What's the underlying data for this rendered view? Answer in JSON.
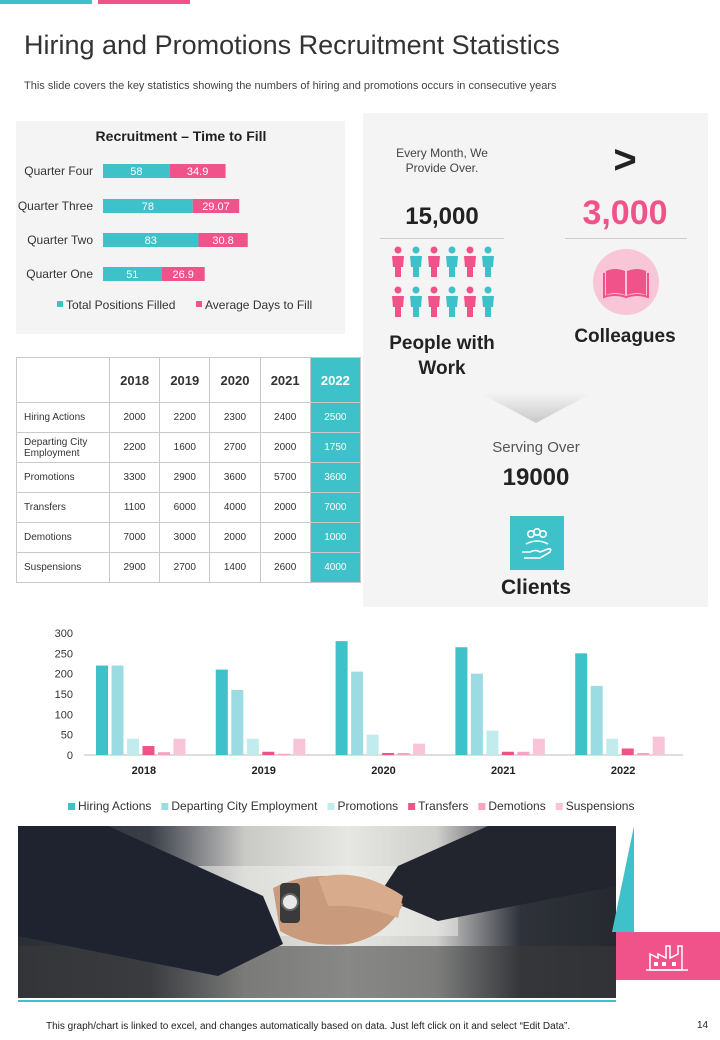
{
  "header": {
    "title": "Hiring and Promotions Recruitment Statistics",
    "subtitle": "This slide covers the key statistics showing the numbers of hiring and promotions occurs in consecutive years"
  },
  "colors": {
    "teal": "#3ec1c9",
    "pink": "#f0528a",
    "light_teal": "#9bdce2",
    "pale_teal": "#c2ebee",
    "light_pink": "#f6a3c4",
    "pale_pink": "#f9c3d8"
  },
  "chart_data": [
    {
      "type": "bar",
      "orientation": "horizontal",
      "stacked": true,
      "title": "Recruitment – Time to Fill",
      "categories": [
        "Quarter Four",
        "Quarter Three",
        "Quarter Two",
        "Quarter One"
      ],
      "series": [
        {
          "name": "Total Positions Filled",
          "values": [
            58,
            78,
            83,
            51
          ]
        },
        {
          "name": "Average Days to Fill",
          "values": [
            34.9,
            29.07,
            30.8,
            26.9
          ]
        }
      ],
      "legend": "bottom"
    },
    {
      "type": "bar",
      "categories": [
        "2018",
        "2019",
        "2020",
        "2021",
        "2022"
      ],
      "ylim": [
        0,
        300
      ],
      "yticks": [
        "300",
        "250",
        "200",
        "150",
        "100",
        "50",
        "0"
      ],
      "legend": "bottom",
      "series": [
        {
          "name": "Hiring Actions",
          "values": [
            220,
            210,
            280,
            265,
            250
          ]
        },
        {
          "name": "Departing City Employment",
          "values": [
            220,
            160,
            205,
            200,
            170
          ]
        },
        {
          "name": "Promotions",
          "values": [
            40,
            40,
            50,
            60,
            40
          ]
        },
        {
          "name": "Transfers",
          "values": [
            22,
            8,
            5,
            8,
            16
          ]
        },
        {
          "name": "Demotions",
          "values": [
            7,
            3,
            5,
            8,
            5
          ]
        },
        {
          "name": "Suspensions",
          "values": [
            40,
            40,
            28,
            40,
            45
          ]
        }
      ]
    }
  ],
  "table": {
    "years": [
      "2018",
      "2019",
      "2020",
      "2021",
      "2022"
    ],
    "rows": [
      {
        "label": "Hiring Actions",
        "values": [
          "2000",
          "2200",
          "2300",
          "2400",
          "2500"
        ]
      },
      {
        "label": "Departing City Employment",
        "values": [
          "2200",
          "1600",
          "2700",
          "2000",
          "1750"
        ]
      },
      {
        "label": "Promotions",
        "values": [
          "3300",
          "2900",
          "3600",
          "5700",
          "3600"
        ]
      },
      {
        "label": "Transfers",
        "values": [
          "1100",
          "6000",
          "4000",
          "2000",
          "7000"
        ]
      },
      {
        "label": "Demotions",
        "values": [
          "7000",
          "3000",
          "2000",
          "2000",
          "1000"
        ]
      },
      {
        "label": "Suspensions",
        "values": [
          "2900",
          "2700",
          "1400",
          "2600",
          "4000"
        ]
      }
    ]
  },
  "stats": {
    "provide_text": "Every Month, We Provide Over.",
    "people_count": "15,000",
    "people_label": "People with Work",
    "gt": ">",
    "colleagues_count": "3,000",
    "colleagues_label": "Colleagues",
    "serving_text": "Serving Over",
    "clients_count": "19000",
    "clients_label": "Clients"
  },
  "icons": {
    "people": "person-icon",
    "book": "open-book-icon",
    "clients": "hand-holding-people-icon",
    "factory": "factory-icon"
  },
  "image": {
    "description_name": "handshake-photo"
  },
  "footer": {
    "note": "This graph/chart is linked to excel,  and changes automatically based on data. Just left click on it and select “Edit Data”.",
    "page_number": "14"
  }
}
